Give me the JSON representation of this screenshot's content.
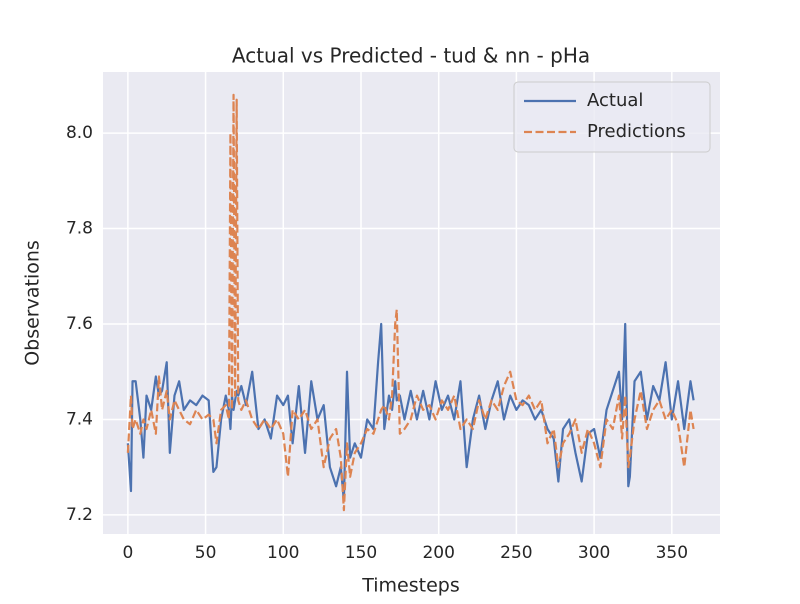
{
  "chart_data": {
    "type": "line",
    "title": "Actual vs Predicted - tud & nn - pHa",
    "xlabel": "Timesteps",
    "ylabel": "Observations",
    "x": [
      0,
      2,
      3,
      5,
      8,
      10,
      12,
      15,
      18,
      20,
      22,
      25,
      27,
      30,
      33,
      36,
      40,
      44,
      48,
      52,
      55,
      57,
      60,
      63,
      65,
      66,
      67,
      68,
      69,
      70,
      71,
      73,
      76,
      80,
      84,
      88,
      92,
      96,
      100,
      103,
      106,
      110,
      114,
      118,
      122,
      126,
      130,
      134,
      137,
      139,
      141,
      143,
      146,
      150,
      154,
      158,
      161,
      163,
      165,
      168,
      170,
      172,
      173,
      175,
      178,
      182,
      186,
      190,
      194,
      198,
      202,
      206,
      210,
      214,
      218,
      222,
      226,
      230,
      234,
      238,
      242,
      246,
      250,
      254,
      258,
      262,
      266,
      270,
      274,
      277,
      280,
      284,
      288,
      292,
      296,
      300,
      304,
      308,
      312,
      316,
      318,
      320,
      322,
      323,
      326,
      330,
      334,
      338,
      342,
      346,
      350,
      354,
      358,
      362,
      364
    ],
    "series": [
      {
        "name": "Actual",
        "color": "#4c72b0",
        "linestyle": "solid",
        "values": [
          7.35,
          7.25,
          7.48,
          7.48,
          7.4,
          7.32,
          7.45,
          7.42,
          7.49,
          7.45,
          7.46,
          7.52,
          7.33,
          7.45,
          7.48,
          7.42,
          7.44,
          7.43,
          7.45,
          7.44,
          7.29,
          7.3,
          7.4,
          7.45,
          7.42,
          7.38,
          7.45,
          7.42,
          7.44,
          7.46,
          7.45,
          7.47,
          7.43,
          7.5,
          7.38,
          7.4,
          7.36,
          7.45,
          7.43,
          7.45,
          7.35,
          7.47,
          7.33,
          7.48,
          7.4,
          7.43,
          7.3,
          7.26,
          7.3,
          7.23,
          7.5,
          7.32,
          7.35,
          7.32,
          7.4,
          7.38,
          7.52,
          7.6,
          7.38,
          7.45,
          7.42,
          7.48,
          7.44,
          7.45,
          7.4,
          7.46,
          7.4,
          7.46,
          7.4,
          7.48,
          7.42,
          7.45,
          7.4,
          7.48,
          7.3,
          7.4,
          7.45,
          7.38,
          7.44,
          7.48,
          7.4,
          7.45,
          7.42,
          7.44,
          7.43,
          7.4,
          7.42,
          7.38,
          7.36,
          7.27,
          7.38,
          7.4,
          7.33,
          7.27,
          7.37,
          7.38,
          7.32,
          7.42,
          7.46,
          7.5,
          7.4,
          7.6,
          7.26,
          7.28,
          7.48,
          7.5,
          7.4,
          7.47,
          7.44,
          7.52,
          7.4,
          7.48,
          7.38,
          7.48,
          7.44
        ]
      },
      {
        "name": "Predictions",
        "color": "#dd8452",
        "linestyle": "dashed",
        "values": [
          7.33,
          7.45,
          7.38,
          7.4,
          7.37,
          7.4,
          7.38,
          7.42,
          7.37,
          7.49,
          7.42,
          7.46,
          7.4,
          7.44,
          7.42,
          7.4,
          7.39,
          7.42,
          7.4,
          7.41,
          7.4,
          7.35,
          7.42,
          7.43,
          7.4,
          8.0,
          7.42,
          8.08,
          7.45,
          8.07,
          7.44,
          7.42,
          7.44,
          7.4,
          7.38,
          7.4,
          7.38,
          7.4,
          7.37,
          7.28,
          7.42,
          7.4,
          7.42,
          7.38,
          7.4,
          7.3,
          7.36,
          7.38,
          7.32,
          7.21,
          7.35,
          7.28,
          7.33,
          7.35,
          7.38,
          7.37,
          7.4,
          7.42,
          7.43,
          7.4,
          7.45,
          7.6,
          7.63,
          7.37,
          7.38,
          7.4,
          7.45,
          7.42,
          7.43,
          7.4,
          7.44,
          7.42,
          7.45,
          7.38,
          7.4,
          7.38,
          7.44,
          7.4,
          7.44,
          7.42,
          7.47,
          7.5,
          7.44,
          7.43,
          7.45,
          7.42,
          7.44,
          7.35,
          7.38,
          7.3,
          7.35,
          7.37,
          7.4,
          7.33,
          7.38,
          7.35,
          7.3,
          7.4,
          7.38,
          7.45,
          7.36,
          7.45,
          7.3,
          7.32,
          7.4,
          7.46,
          7.38,
          7.42,
          7.44,
          7.4,
          7.42,
          7.39,
          7.3,
          7.42,
          7.38
        ]
      }
    ],
    "xlim": [
      -16,
      381
    ],
    "ylim": [
      7.16,
      8.128
    ],
    "xticks": [
      0,
      50,
      100,
      150,
      200,
      250,
      300,
      350
    ],
    "yticks": [
      7.2,
      7.4,
      7.6,
      7.8,
      {
        "value": 8,
        "label": "8.0"
      }
    ],
    "grid": true,
    "legend": "upper right"
  }
}
